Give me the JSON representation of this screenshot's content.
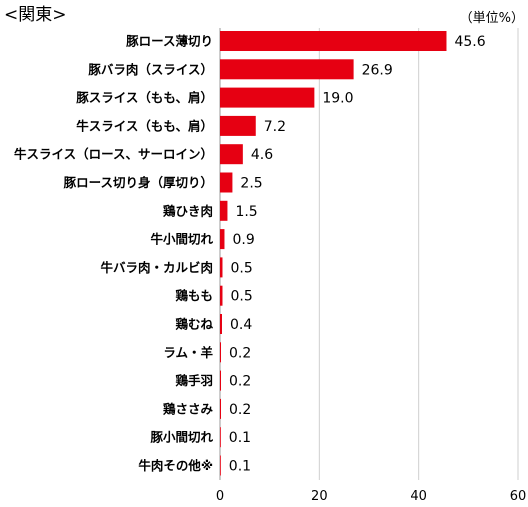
{
  "region_label": "<関東>",
  "unit_label": "（単位%）",
  "colors": {
    "bar": "#e60012",
    "grid": "#cfcfcf",
    "axis": "#999999"
  },
  "chart_data": {
    "type": "bar",
    "orientation": "horizontal",
    "title": "<関東>",
    "xlabel": "",
    "ylabel": "",
    "unit": "（単位%）",
    "xlim": [
      0,
      60
    ],
    "x_ticks": [
      "0",
      "20",
      "40",
      "60"
    ],
    "grid": true,
    "categories": [
      "豚ロース薄切り",
      "豚バラ肉（スライス）",
      "豚スライス（もも、肩）",
      "牛スライス（もも、肩）",
      "牛スライス（ロース、サーロイン）",
      "豚ロース切り身（厚切り）",
      "鶏ひき肉",
      "牛小間切れ",
      "牛バラ肉・カルビ肉",
      "鶏もも",
      "鶏むね",
      "ラム・羊",
      "鶏手羽",
      "鶏ささみ",
      "豚小間切れ",
      "牛肉その他※"
    ],
    "values": [
      45.6,
      26.9,
      19.0,
      7.2,
      4.6,
      2.5,
      1.5,
      0.9,
      0.5,
      0.5,
      0.4,
      0.2,
      0.2,
      0.2,
      0.1,
      0.1
    ],
    "value_labels": [
      "45.6",
      "26.9",
      "19.0",
      "7.2",
      "4.6",
      "2.5",
      "1.5",
      "0.9",
      "0.5",
      "0.5",
      "0.4",
      "0.2",
      "0.2",
      "0.2",
      "0.1",
      "0.1"
    ]
  }
}
